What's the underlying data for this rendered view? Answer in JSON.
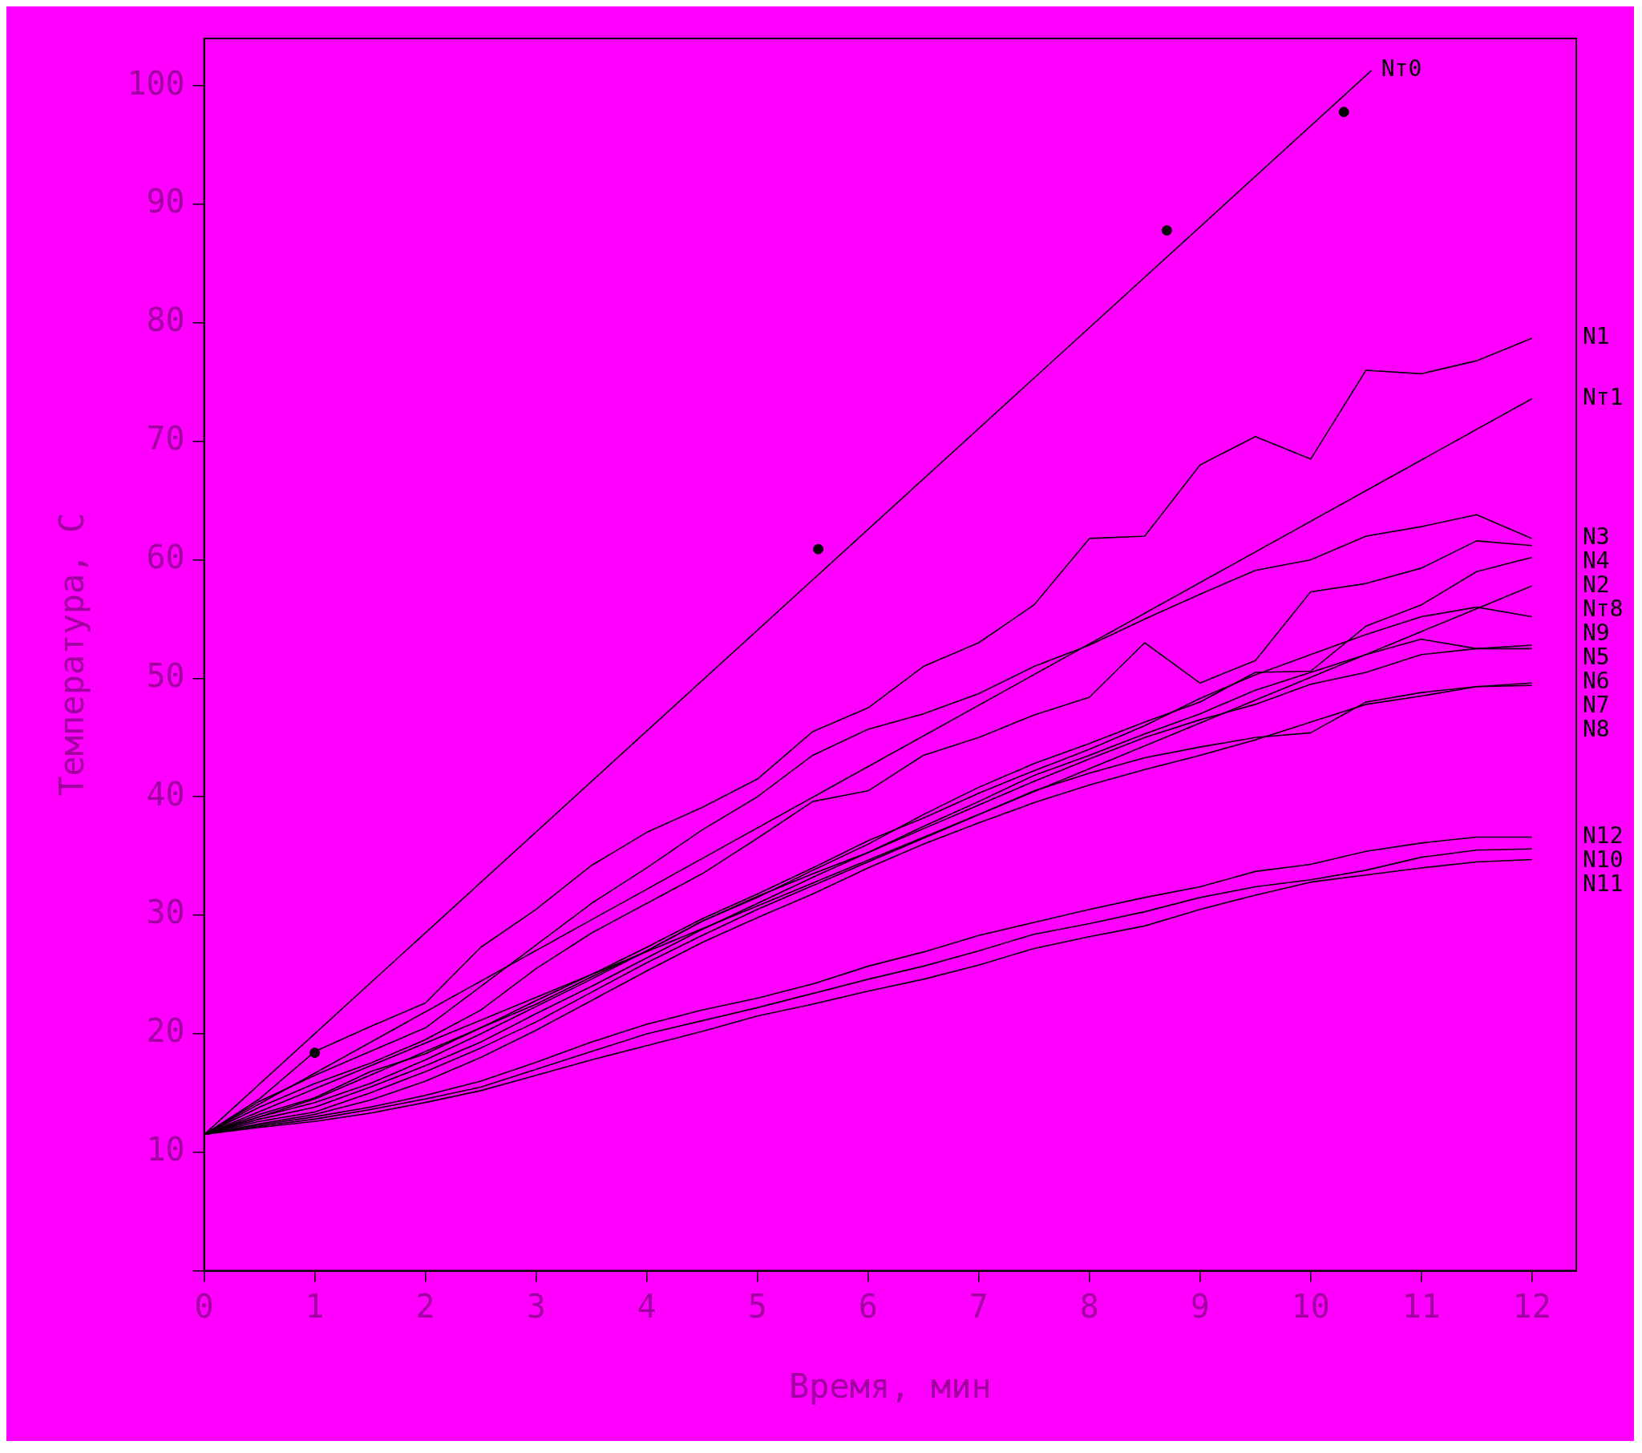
{
  "chart_data": {
    "type": "line",
    "xlabel": "Время, мин",
    "ylabel": "Температура, С",
    "x": [
      0,
      0.5,
      1,
      1.5,
      2,
      2.5,
      3,
      3.5,
      4,
      4.5,
      5,
      5.5,
      6,
      6.5,
      7,
      7.5,
      8,
      8.5,
      9,
      9.5,
      10,
      10.5,
      11,
      11.5,
      12
    ],
    "xlim": [
      0,
      12.4
    ],
    "ylim": [
      0,
      104
    ],
    "xticks": [
      0,
      1,
      2,
      3,
      4,
      5,
      6,
      7,
      8,
      9,
      10,
      11,
      12
    ],
    "yticks": [
      {
        "value": 0,
        "label": null
      },
      10,
      20,
      30,
      40,
      50,
      60,
      70,
      80,
      90,
      100
    ],
    "grid": false,
    "legend": false,
    "series": [
      {
        "name": "Nт0",
        "color": "#000000",
        "x": [
          0,
          10.55
        ],
        "values": [
          11.5,
          101.3
        ]
      },
      {
        "name": "Nт1",
        "color": "#000000",
        "x": [
          0,
          12
        ],
        "values": [
          11.5,
          73.6
        ]
      },
      {
        "name": "Nт8",
        "color": "#000000",
        "x": [
          0,
          12
        ],
        "values": [
          11.5,
          57.8
        ]
      },
      {
        "name": "N1",
        "color": "#000000",
        "values": [
          11.5,
          14.5,
          18.5,
          20.6,
          22.6,
          27.3,
          30.5,
          34.2,
          37,
          39.1,
          41.5,
          45.5,
          47.5,
          51,
          53,
          56.2,
          61.8,
          62,
          68,
          70.4,
          68.5,
          76,
          75.7,
          76.8,
          78.7
        ]
      },
      {
        "name": "N2",
        "color": "#000000",
        "values": [
          11.5,
          13,
          14.5,
          16.5,
          18.5,
          20.5,
          22.5,
          24.8,
          27,
          29.5,
          31.5,
          33.8,
          36,
          38.5,
          40.8,
          42.8,
          44.5,
          46.3,
          48,
          50.5,
          50.6,
          54.4,
          56.2,
          59,
          60.2
        ]
      },
      {
        "name": "N3",
        "color": "#000000",
        "values": [
          11.5,
          14.3,
          16.5,
          18.5,
          20.5,
          24,
          27.5,
          31,
          34,
          37.2,
          40,
          43.5,
          45.7,
          47,
          48.7,
          51,
          52.8,
          55,
          57.1,
          59.1,
          60,
          62,
          62.8,
          63.8,
          61.8
        ]
      },
      {
        "name": "N4",
        "color": "#000000",
        "values": [
          11.5,
          13.8,
          15.8,
          17.5,
          19.5,
          22,
          25.5,
          28.5,
          31,
          33.5,
          36.5,
          39.6,
          40.5,
          43.5,
          45,
          46.9,
          48.4,
          53,
          49.6,
          51.5,
          57.3,
          58,
          59.3,
          61.6,
          61.2
        ]
      },
      {
        "name": "N5",
        "color": "#000000",
        "values": [
          11.5,
          13,
          14.2,
          15.8,
          17.8,
          20,
          22.3,
          24.6,
          27,
          29.5,
          31.6,
          33.5,
          35.3,
          37.5,
          39.6,
          41.8,
          43.5,
          45.3,
          47,
          49,
          50.5,
          52,
          53.3,
          52.5,
          52.8
        ]
      },
      {
        "name": "N6",
        "color": "#000000",
        "values": [
          11.5,
          12.8,
          13.8,
          15.5,
          17.3,
          19.3,
          21.7,
          24,
          26.4,
          28.8,
          31,
          33.2,
          35.3,
          37.3,
          39.3,
          41.3,
          43.2,
          45,
          46.5,
          47.8,
          49.5,
          50.5,
          52,
          52.5,
          52.5
        ]
      },
      {
        "name": "N7",
        "color": "#000000",
        "values": [
          11.5,
          12.6,
          13.4,
          15,
          16.8,
          18.8,
          21,
          23.5,
          26,
          28.3,
          30.5,
          32.5,
          34.5,
          36.5,
          38.5,
          40.5,
          42,
          43.3,
          44.2,
          45,
          45.4,
          48,
          48.8,
          49.3,
          49.6
        ]
      },
      {
        "name": "N8",
        "color": "#000000",
        "values": [
          11.5,
          12.4,
          13.2,
          14.4,
          16,
          18,
          20.3,
          22.8,
          25.3,
          27.7,
          29.8,
          31.8,
          34,
          36,
          37.8,
          39.5,
          41,
          42.3,
          43.5,
          44.8,
          46.3,
          47.8,
          48.5,
          49.3,
          49.4
        ]
      },
      {
        "name": "N9",
        "color": "#000000",
        "values": [
          11.5,
          13.2,
          14.6,
          16.8,
          18.3,
          20.5,
          22.8,
          25,
          27.3,
          29.7,
          31.8,
          34,
          36.3,
          38.2,
          40.3,
          42.2,
          44,
          46,
          48.3,
          50.3,
          52,
          53.7,
          55.2,
          56,
          55.2
        ]
      },
      {
        "name": "N10",
        "color": "#000000",
        "values": [
          11.5,
          12.2,
          12.8,
          13.6,
          14.5,
          15.5,
          17,
          18.5,
          20,
          21.1,
          22.2,
          23.4,
          24.6,
          25.7,
          27,
          28.4,
          29.3,
          30.3,
          31.5,
          32.4,
          33,
          33.8,
          34.9,
          35.5,
          35.6
        ]
      },
      {
        "name": "N11",
        "color": "#000000",
        "values": [
          11.5,
          12.1,
          12.6,
          13.3,
          14.2,
          15.2,
          16.5,
          17.8,
          19,
          20.2,
          21.5,
          22.5,
          23.6,
          24.6,
          25.8,
          27.2,
          28.2,
          29.1,
          30.5,
          31.7,
          32.8,
          33.4,
          34,
          34.5,
          34.7
        ]
      },
      {
        "name": "N12",
        "color": "#000000",
        "values": [
          11.5,
          12.3,
          13,
          13.8,
          14.8,
          16,
          17.6,
          19.3,
          20.8,
          22,
          23,
          24.2,
          25.7,
          26.9,
          28.3,
          29.4,
          30.5,
          31.5,
          32.4,
          33.7,
          34.3,
          35.4,
          36.1,
          36.6,
          36.6
        ]
      },
      {
        "type": "scatter",
        "color": "#000000",
        "marker": "circle",
        "x": [
          1.0,
          5.55,
          8.7,
          10.3
        ],
        "values": [
          18.4,
          60.9,
          87.8,
          97.8
        ]
      }
    ]
  }
}
